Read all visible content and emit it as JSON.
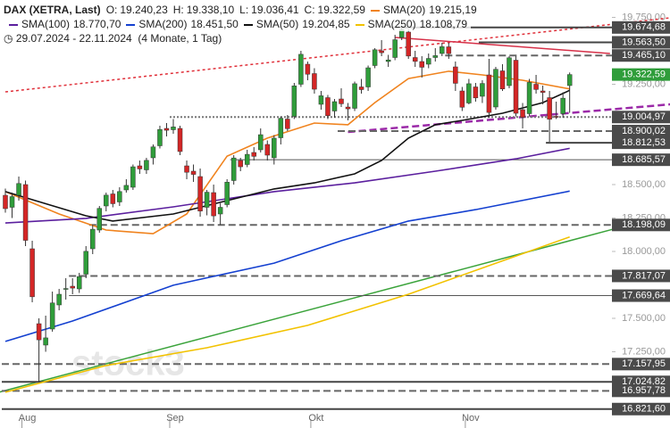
{
  "chart_data": {
    "type": "candlestick",
    "title": "DAX (XETRA, Last)",
    "ohlc_fields": [
      {
        "key": "O:",
        "label": "19.240,23"
      },
      {
        "key": "H:",
        "label": "19.338,10"
      },
      {
        "key": "L:",
        "label": "19.036,41"
      },
      {
        "key": "C:",
        "label": "19.322,59"
      }
    ],
    "period": "29.07.2024 - 22.11.2024",
    "period_note": "(4 Monate, 1 Tag)",
    "watermark": "stock3",
    "categories": [
      null,
      null,
      null,
      "Aug",
      null,
      null,
      null,
      null,
      null,
      null,
      null,
      null,
      null,
      null,
      null,
      null,
      null,
      null,
      null,
      null,
      null,
      null,
      null,
      null,
      null,
      "Sep",
      null,
      null,
      null,
      null,
      null,
      null,
      null,
      null,
      null,
      null,
      null,
      null,
      null,
      null,
      null,
      null,
      null,
      null,
      null,
      null,
      "Okt",
      null,
      null,
      null,
      null,
      null,
      null,
      null,
      null,
      null,
      null,
      null,
      null,
      null,
      null,
      null,
      null,
      null,
      null,
      null,
      null,
      null,
      null,
      "Nov",
      null,
      null,
      null,
      null,
      null,
      null,
      null,
      null,
      null,
      null,
      null,
      null,
      null,
      null,
      null
    ],
    "open": [
      18420,
      18330,
      18420,
      18500,
      18020,
      17460,
      17300,
      17420,
      17600,
      17720,
      17740,
      17720,
      17830,
      18020,
      18160,
      18340,
      18430,
      18370,
      18460,
      18480,
      18640,
      18610,
      18700,
      18790,
      18920,
      18910,
      18920,
      18640,
      18600,
      18560,
      18330,
      18440,
      18280,
      18350,
      18530,
      18680,
      18650,
      18740,
      18760,
      18800,
      18700,
      18850,
      18990,
      19010,
      19250,
      19400,
      19330,
      19100,
      19150,
      19050,
      19140,
      19080,
      19070,
      19230,
      19230,
      19390,
      19500,
      19420,
      19450,
      19600,
      19640,
      19450,
      19420,
      19400,
      19450,
      19480,
      19530,
      19380,
      19200,
      19110,
      19230,
      19160,
      19320,
      19080,
      19350,
      19240,
      19430,
      19060,
      19030,
      19250,
      19200,
      19150,
      19010,
      19030,
      19240.23
    ],
    "high": [
      18470,
      18440,
      18560,
      18530,
      18080,
      17500,
      17520,
      17700,
      17720,
      17800,
      17800,
      17840,
      18040,
      18200,
      18340,
      18440,
      18460,
      18480,
      18540,
      18650,
      18680,
      18700,
      18800,
      18940,
      18960,
      18990,
      18940,
      18680,
      18650,
      18620,
      18460,
      18500,
      18360,
      18540,
      18720,
      18700,
      18760,
      18780,
      18920,
      18830,
      18870,
      19010,
      19020,
      19260,
      19500,
      19420,
      19370,
      19200,
      19170,
      19140,
      19220,
      19110,
      19270,
      19290,
      19390,
      19520,
      19580,
      19470,
      19620,
      19675,
      19660,
      19500,
      19460,
      19480,
      19520,
      19560,
      19560,
      19420,
      19230,
      19290,
      19260,
      19280,
      19440,
      19380,
      19400,
      19460,
      19460,
      19110,
      19290,
      19320,
      19240,
      19200,
      19120,
      19190,
      19338.1
    ],
    "low": [
      18290,
      18250,
      18380,
      18040,
      17620,
      17025,
      17250,
      17400,
      17560,
      17640,
      17680,
      17690,
      17800,
      17980,
      18140,
      18300,
      18330,
      18340,
      18440,
      18460,
      18580,
      18580,
      18650,
      18770,
      18860,
      18880,
      18720,
      18540,
      18520,
      18260,
      18270,
      18220,
      18200,
      18330,
      18500,
      18600,
      18630,
      18680,
      18740,
      18680,
      18650,
      18800,
      18900,
      18990,
      19230,
      19280,
      19180,
      19060,
      18990,
      19000,
      19080,
      18980,
      19050,
      19180,
      19200,
      19370,
      19460,
      19380,
      19430,
      19580,
      19440,
      19380,
      19300,
      19370,
      19420,
      19460,
      19440,
      19200,
      19050,
      19100,
      19120,
      19110,
      19000,
      19060,
      19200,
      19220,
      19010,
      18920,
      19010,
      19180,
      19100,
      18820,
      18990,
      19000,
      19036.41
    ],
    "close": [
      18320,
      18410,
      18508,
      18083,
      17661,
      17339,
      17354,
      17615,
      17680,
      17723,
      17726,
      17812,
      18001,
      18166,
      18322,
      18421,
      18357,
      18448,
      18494,
      18633,
      18617,
      18681,
      18782,
      18912,
      18906,
      18931,
      18747,
      18592,
      18576,
      18302,
      18443,
      18266,
      18330,
      18518,
      18699,
      18633,
      18726,
      18711,
      18873,
      18720,
      18847,
      18996,
      18918,
      19238,
      19474,
      19325,
      19213,
      19164,
      19015,
      19120,
      19104,
      19066,
      19254,
      19210,
      19373,
      19508,
      19486,
      19432,
      19583,
      19657,
      19461,
      19421,
      19377,
      19443,
      19464,
      19531,
      19479,
      19257,
      19078,
      19254,
      19148,
      19256,
      19039,
      19362,
      19215,
      19448,
      19033,
      19003,
      19264,
      19211,
      19189,
      18988,
      19005,
      19146,
      19322.59
    ],
    "up_color": "#2f9d3a",
    "down_color": "#d42626",
    "series": [
      {
        "name": "SMA(20)",
        "label": "19.215,19",
        "color": "#f0831e",
        "x": [
          0,
          8,
          15,
          22,
          27,
          33,
          39,
          46,
          51,
          55,
          60,
          66,
          71,
          77,
          84
        ],
        "values": [
          18447,
          18280,
          18160,
          18133,
          18280,
          18713,
          18847,
          18960,
          18947,
          19113,
          19293,
          19347,
          19320,
          19280,
          19215.19
        ]
      },
      {
        "name": "SMA(100)",
        "label": "18.770,70",
        "color": "#5b1f9e",
        "x": [
          0,
          12,
          25,
          40,
          52,
          64,
          76,
          84
        ],
        "values": [
          18213,
          18247,
          18333,
          18447,
          18513,
          18600,
          18693,
          18770.7
        ]
      },
      {
        "name": "SMA(200)",
        "label": "18.451,50",
        "color": "#1440d0",
        "x": [
          0,
          10,
          25,
          40,
          50,
          60,
          70,
          84
        ],
        "values": [
          17327,
          17480,
          17747,
          17913,
          18080,
          18227,
          18313,
          18451.5
        ]
      },
      {
        "name": "SMA(50)",
        "label": "19.204,85",
        "color": "#111111",
        "x": [
          0,
          12,
          16,
          25,
          33,
          40,
          46,
          52,
          56,
          60,
          64,
          68,
          74,
          80,
          84
        ],
        "values": [
          18447,
          18267,
          18227,
          18280,
          18380,
          18467,
          18513,
          18580,
          18680,
          18847,
          18947,
          18980,
          19033,
          19113,
          19204.85
        ]
      },
      {
        "name": "SMA(250)",
        "label": "18.108,79",
        "color": "#f2c200",
        "x": [
          0,
          15,
          30,
          45,
          60,
          75,
          84
        ],
        "values": [
          16947,
          17147,
          17280,
          17447,
          17680,
          17947,
          18108.79
        ]
      }
    ],
    "levels": [
      {
        "value": 19674.68,
        "label": "19.674,68",
        "style": "solid",
        "from": 58
      },
      {
        "value": 19563.5,
        "label": "19.563,50",
        "style": "solid",
        "from": 71
      },
      {
        "value": 19465.1,
        "label": "19.465,10",
        "style": "dashed",
        "from": 66
      },
      {
        "value": 19322.59,
        "label": "19.322,59",
        "style": "current",
        "from": 84
      },
      {
        "value": 19004.97,
        "label": "19.004,97",
        "style": "dotted",
        "from": 25
      },
      {
        "value": 18900.02,
        "label": "18.900,02",
        "style": "dashed",
        "from": 50
      },
      {
        "value": 18812.53,
        "label": "18.812,53",
        "style": "solid",
        "from": 81
      },
      {
        "value": 18685.57,
        "label": "18.685,57",
        "style": "thin",
        "from": 34
      },
      {
        "value": 18198.09,
        "label": "18.198,09",
        "style": "dashed",
        "from": 13
      },
      {
        "value": 17817.07,
        "label": "17.817,07",
        "style": "dashed",
        "from": 10
      },
      {
        "value": 17669.64,
        "label": "17.669,64",
        "style": "thin",
        "from": 10
      },
      {
        "value": 17157.95,
        "label": "17.157,95",
        "style": "dashed",
        "from": 0
      },
      {
        "value": 17024.82,
        "label": "17.024,82",
        "style": "solid",
        "from": 0
      },
      {
        "value": 16957.78,
        "label": "16.957,78",
        "style": "dashed",
        "from": 0
      },
      {
        "value": 16821.6,
        "label": "16.821,60",
        "style": "solid",
        "from": 0
      }
    ],
    "trendlines": [
      {
        "color": "#e0303a",
        "style": "dotted",
        "x": [
          0,
          99
        ],
        "values": [
          19193,
          19747
        ]
      },
      {
        "color": "#d63048",
        "style": "solid",
        "x": [
          58,
          90
        ],
        "values": [
          19600,
          19480
        ]
      },
      {
        "color": "#9b2aa8",
        "style": "dashed",
        "x": [
          51,
          99
        ],
        "values": [
          18893,
          19100
        ]
      },
      {
        "color": "#3aa33a",
        "style": "solid",
        "x": [
          -1,
          99
        ],
        "values": [
          16947,
          18280
        ]
      }
    ],
    "ylim": [
      16680,
      19880
    ],
    "yticks": [
      {
        "value": 17250,
        "label": "17.250,00"
      },
      {
        "value": 17500,
        "label": "17.500,00"
      },
      {
        "value": 18000,
        "label": "18.000,00"
      },
      {
        "value": 18250,
        "label": "18.250,00"
      },
      {
        "value": 18500,
        "label": "18.500,00"
      },
      {
        "value": 19250,
        "label": "19.250,00"
      },
      {
        "value": 19750,
        "label": "19.750,00"
      }
    ]
  }
}
